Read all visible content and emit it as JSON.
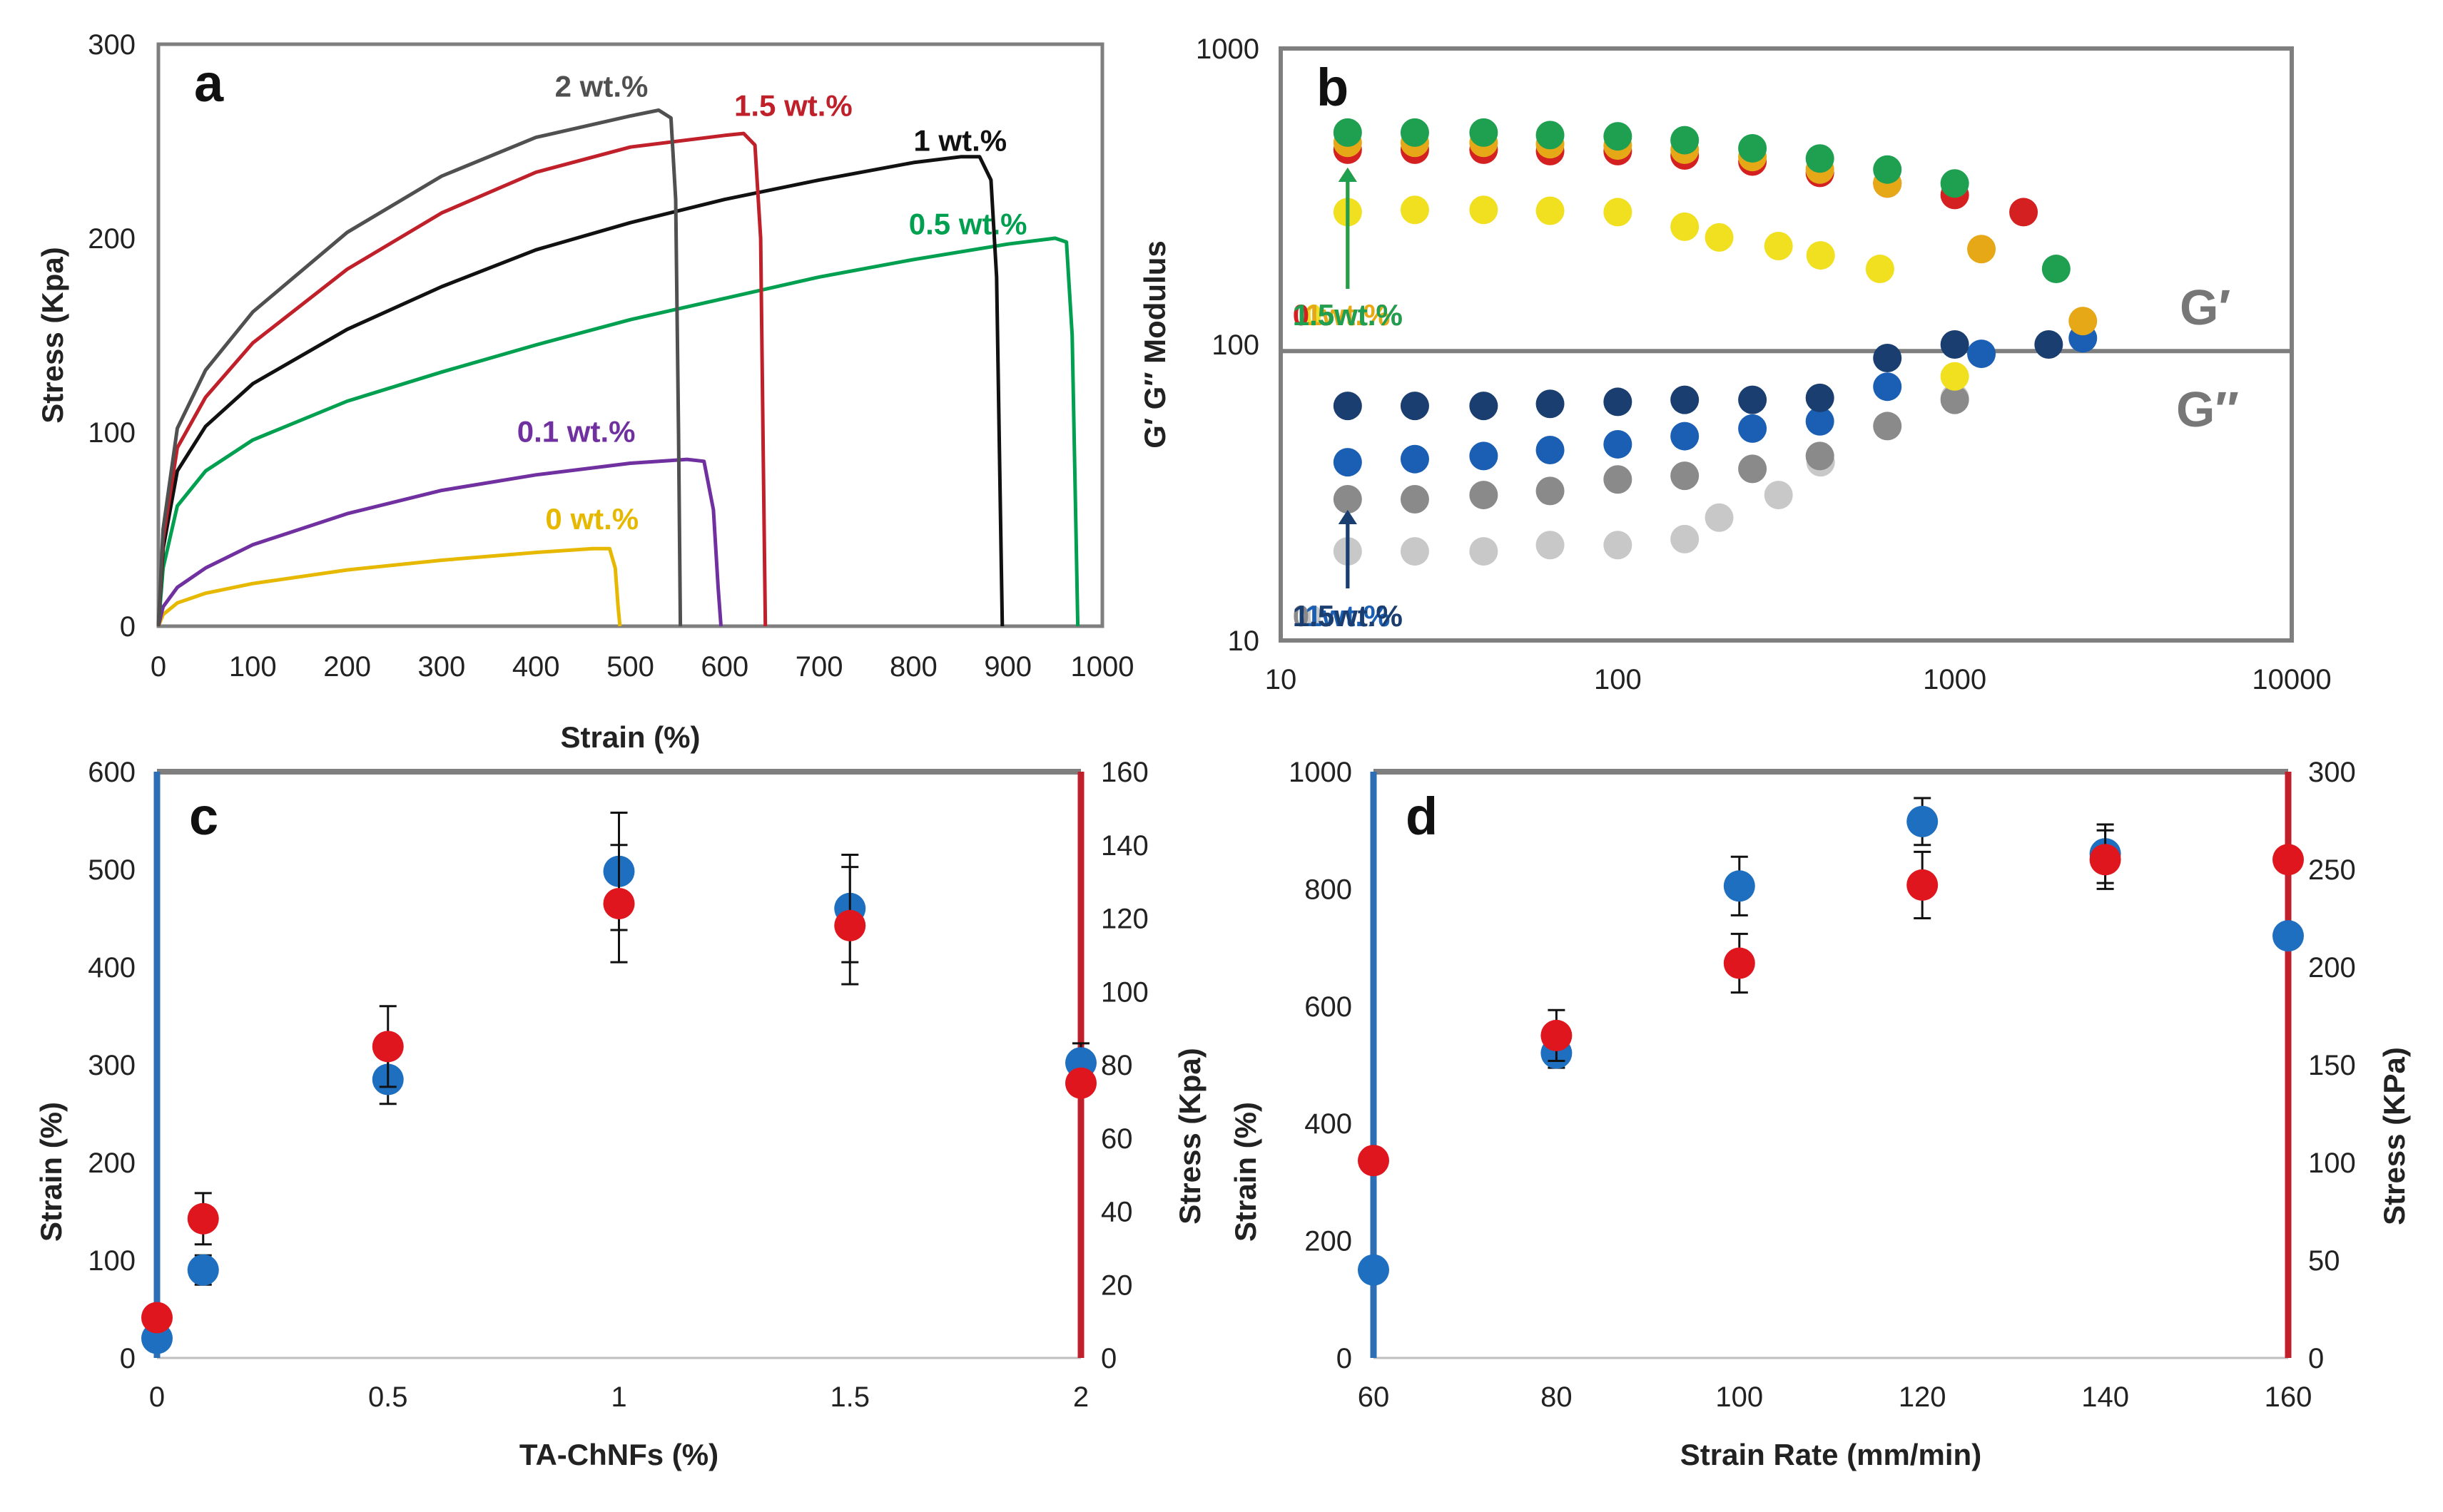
{
  "chart_data": [
    {
      "id": "a",
      "type": "line",
      "panel_letter": "a",
      "xlabel": "Strain (%)",
      "ylabel": "Stress (Kpa)",
      "xlim": [
        0,
        1000
      ],
      "ylim": [
        0,
        300
      ],
      "xticks": [
        "0",
        "100",
        "200",
        "300",
        "400",
        "500",
        "600",
        "700",
        "800",
        "900",
        "1000"
      ],
      "yticks": [
        "0",
        "100",
        "200",
        "300"
      ],
      "series": [
        {
          "name": "0 wt.%",
          "color": "#E6B800",
          "label_at": [
            410,
            50
          ],
          "points": [
            [
              0,
              0
            ],
            [
              5,
              6
            ],
            [
              20,
              12
            ],
            [
              50,
              17
            ],
            [
              100,
              22
            ],
            [
              200,
              29
            ],
            [
              300,
              34
            ],
            [
              400,
              38
            ],
            [
              460,
              40
            ],
            [
              478,
              40
            ],
            [
              484,
              30
            ],
            [
              487,
              10
            ],
            [
              489,
              0
            ]
          ]
        },
        {
          "name": "0.1 wt.%",
          "color": "#7030A0",
          "label_at": [
            380,
            95
          ],
          "points": [
            [
              0,
              0
            ],
            [
              5,
              10
            ],
            [
              20,
              20
            ],
            [
              50,
              30
            ],
            [
              100,
              42
            ],
            [
              200,
              58
            ],
            [
              300,
              70
            ],
            [
              400,
              78
            ],
            [
              500,
              84
            ],
            [
              560,
              86
            ],
            [
              578,
              85
            ],
            [
              588,
              60
            ],
            [
              593,
              20
            ],
            [
              596,
              0
            ]
          ]
        },
        {
          "name": "0.5 wt.%",
          "color": "#00A050",
          "label_at": [
            795,
            202
          ],
          "points": [
            [
              0,
              0
            ],
            [
              5,
              30
            ],
            [
              20,
              62
            ],
            [
              50,
              80
            ],
            [
              100,
              96
            ],
            [
              200,
              116
            ],
            [
              300,
              131
            ],
            [
              400,
              145
            ],
            [
              500,
              158
            ],
            [
              600,
              169
            ],
            [
              700,
              180
            ],
            [
              800,
              189
            ],
            [
              900,
              197
            ],
            [
              950,
              200
            ],
            [
              962,
              198
            ],
            [
              968,
              150
            ],
            [
              972,
              50
            ],
            [
              974,
              0
            ]
          ]
        },
        {
          "name": "1 wt.%",
          "color": "#111111",
          "label_at": [
            800,
            245
          ],
          "points": [
            [
              0,
              0
            ],
            [
              5,
              40
            ],
            [
              20,
              80
            ],
            [
              50,
              103
            ],
            [
              100,
              125
            ],
            [
              200,
              153
            ],
            [
              300,
              175
            ],
            [
              400,
              194
            ],
            [
              500,
              208
            ],
            [
              600,
              220
            ],
            [
              700,
              230
            ],
            [
              800,
              239
            ],
            [
              850,
              242
            ],
            [
              870,
              242
            ],
            [
              882,
              230
            ],
            [
              888,
              180
            ],
            [
              892,
              60
            ],
            [
              894,
              0
            ]
          ]
        },
        {
          "name": "1.5 wt.%",
          "color": "#C0202A",
          "label_at": [
            610,
            263
          ],
          "points": [
            [
              0,
              0
            ],
            [
              5,
              45
            ],
            [
              20,
              92
            ],
            [
              50,
              118
            ],
            [
              100,
              146
            ],
            [
              200,
              184
            ],
            [
              300,
              213
            ],
            [
              400,
              234
            ],
            [
              500,
              247
            ],
            [
              600,
              253
            ],
            [
              620,
              254
            ],
            [
              632,
              248
            ],
            [
              638,
              200
            ],
            [
              641,
              80
            ],
            [
              643,
              0
            ]
          ]
        },
        {
          "name": "2 wt.%",
          "color": "#505050",
          "label_at": [
            420,
            273
          ],
          "points": [
            [
              0,
              0
            ],
            [
              5,
              50
            ],
            [
              20,
              102
            ],
            [
              50,
              132
            ],
            [
              100,
              162
            ],
            [
              200,
              203
            ],
            [
              300,
              232
            ],
            [
              400,
              252
            ],
            [
              500,
              263
            ],
            [
              530,
              266
            ],
            [
              543,
              262
            ],
            [
              548,
              220
            ],
            [
              551,
              100
            ],
            [
              553,
              0
            ]
          ]
        }
      ]
    },
    {
      "id": "b",
      "type": "scatter",
      "panel_letter": "b",
      "xlabel": "",
      "ylabel": "G′ G″ Modulus",
      "xscale": "log",
      "yscale": "log",
      "xlim": [
        10,
        10000
      ],
      "ylim": [
        10,
        1000
      ],
      "xticks": [
        "10",
        "100",
        "1000",
        "10000"
      ],
      "yticks": [
        "10",
        "100",
        "1000"
      ],
      "divider_y": 95,
      "g_prime_label": "G′",
      "g_double_prime_label": "G″",
      "g_prime_series": [
        {
          "name": "0wt.%",
          "color": "#F0E020",
          "x": [
            15.8,
            25,
            40,
            63,
            100,
            158,
            200,
            300,
            400,
            600,
            1000
          ],
          "y": [
            280,
            285,
            285,
            283,
            280,
            250,
            230,
            215,
            200,
            180,
            78
          ]
        },
        {
          "name": "0.5wt.%",
          "color": "#D42020",
          "x": [
            15.8,
            25,
            40,
            63,
            100,
            158,
            251,
            398,
            631,
            1000,
            1600
          ],
          "y": [
            455,
            455,
            455,
            450,
            450,
            435,
            415,
            380,
            350,
            320,
            280
          ]
        },
        {
          "name": "1wt.%",
          "color": "#E6A817",
          "x": [
            15.8,
            25,
            40,
            63,
            100,
            158,
            251,
            398,
            631,
            1200,
            2400
          ],
          "y": [
            480,
            480,
            480,
            475,
            470,
            455,
            430,
            390,
            350,
            210,
            120
          ]
        },
        {
          "name": "1.5wt.%",
          "color": "#1EA050",
          "x": [
            15.8,
            25,
            40,
            63,
            100,
            158,
            251,
            398,
            631,
            1000,
            2000
          ],
          "y": [
            520,
            520,
            520,
            510,
            505,
            490,
            460,
            425,
            390,
            350,
            180
          ]
        }
      ],
      "g_double_prime_series": [
        {
          "name": "0wt.%",
          "color": "#C8C8C8",
          "x": [
            15.8,
            25,
            40,
            63,
            100,
            158,
            200,
            300,
            400,
            1000
          ],
          "y": [
            20,
            20,
            20,
            21,
            21,
            22,
            26,
            31,
            40,
            66
          ]
        },
        {
          "name": "0.5wt.%",
          "color": "#8A8A8A",
          "x": [
            15.8,
            25,
            40,
            63,
            100,
            158,
            251,
            398,
            631,
            1000
          ],
          "y": [
            30,
            30,
            31,
            32,
            35,
            36,
            38,
            42,
            53,
            65
          ]
        },
        {
          "name": "1wt.%",
          "color": "#1A5FB4",
          "x": [
            15.8,
            25,
            40,
            63,
            100,
            158,
            251,
            398,
            631,
            1200,
            2400
          ],
          "y": [
            40,
            41,
            42,
            44,
            46,
            49,
            52,
            55,
            72,
            93,
            105
          ]
        },
        {
          "name": "1.5wt.%",
          "color": "#1A3E70",
          "x": [
            15.8,
            25,
            40,
            63,
            100,
            158,
            251,
            398,
            631,
            1000,
            1900
          ],
          "y": [
            62,
            62,
            62,
            63,
            64,
            65,
            65,
            66,
            90,
            100,
            100
          ]
        }
      ]
    },
    {
      "id": "c",
      "type": "scatter",
      "panel_letter": "c",
      "xlabel": "TA-ChNFs (%)",
      "ylabel_left": "Strain (%)",
      "ylabel_right": "Stress (Kpa)",
      "x": [
        0,
        0.1,
        0.5,
        1,
        1.5,
        2
      ],
      "xticks": [
        "0",
        "0.5",
        "1",
        "1.5",
        "2"
      ],
      "ylim_left": [
        0,
        600
      ],
      "ylim_right": [
        0,
        160
      ],
      "yticks_left": [
        "0",
        "100",
        "200",
        "300",
        "400",
        "500",
        "600"
      ],
      "yticks_right": [
        "0",
        "20",
        "40",
        "60",
        "80",
        "100",
        "120",
        "140",
        "160"
      ],
      "series": [
        {
          "name": "Strain (%)",
          "axis": "left",
          "color": "#1F6FC0",
          "values": [
            20,
            90,
            285,
            498,
            460,
            302
          ],
          "errors": [
            0,
            15,
            25,
            60,
            55,
            20
          ]
        },
        {
          "name": "Stress (Kpa)",
          "axis": "right",
          "color": "#E0161E",
          "values": [
            11,
            38,
            85,
            124,
            118,
            75
          ],
          "errors": [
            0,
            7,
            11,
            16,
            16,
            0
          ]
        }
      ]
    },
    {
      "id": "d",
      "type": "scatter",
      "panel_letter": "d",
      "xlabel": "Strain Rate (mm/min)",
      "ylabel_left": "Strain (%)",
      "ylabel_right": "Stress (KPa)",
      "x": [
        60,
        80,
        100,
        120,
        140,
        160
      ],
      "xticks": [
        "60",
        "80",
        "100",
        "120",
        "140",
        "160"
      ],
      "ylim_left": [
        0,
        1000
      ],
      "ylim_right": [
        0,
        300
      ],
      "yticks_left": [
        "0",
        "200",
        "400",
        "600",
        "800",
        "1000"
      ],
      "yticks_right": [
        "0",
        "50",
        "100",
        "150",
        "200",
        "250",
        "300"
      ],
      "series": [
        {
          "name": "Strain (%)",
          "axis": "left",
          "color": "#1F6FC0",
          "values": [
            150,
            520,
            805,
            915,
            860,
            720
          ],
          "errors": [
            0,
            25,
            50,
            40,
            50,
            0
          ]
        },
        {
          "name": "Stress (KPa)",
          "axis": "right",
          "color": "#E0161E",
          "values": [
            101,
            165,
            202,
            242,
            255,
            255
          ],
          "errors": [
            0,
            13,
            15,
            17,
            15,
            0
          ]
        }
      ]
    }
  ]
}
